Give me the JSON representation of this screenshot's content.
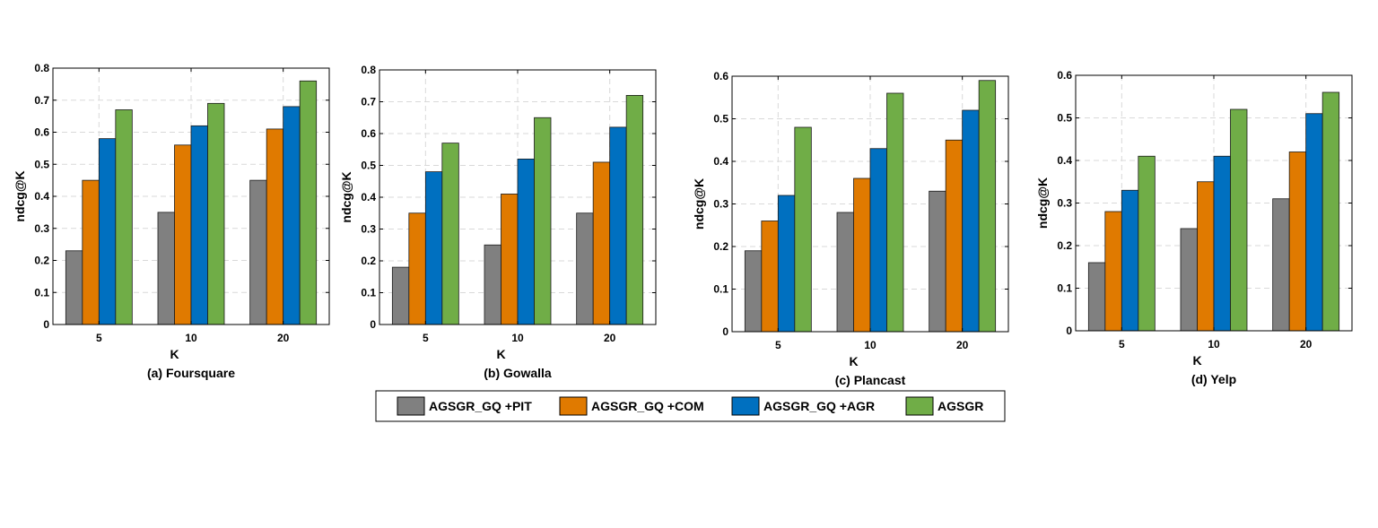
{
  "colors": {
    "series": [
      "#808080",
      "#e07a00",
      "#0070c0",
      "#70ad47"
    ],
    "axis": "#000000",
    "grid": "#d9d9d9"
  },
  "legend": {
    "items": [
      "AGSGR_GQ +PIT",
      "AGSGR_GQ +COM",
      "AGSGR_GQ +AGR",
      "AGSGR"
    ]
  },
  "chart_data": [
    {
      "type": "bar",
      "caption": "(a) Foursquare",
      "xlabel": "K",
      "ylabel": "ndcg@K",
      "categories": [
        "5",
        "10",
        "20"
      ],
      "ylim": [
        0,
        0.8
      ],
      "yticks": [
        "0",
        "0.1",
        "0.2",
        "0.3",
        "0.4",
        "0.5",
        "0.6",
        "0.7",
        "0.8"
      ],
      "grid": true,
      "series": [
        {
          "name": "AGSGR_GQ +PIT",
          "values": [
            0.23,
            0.35,
            0.45
          ]
        },
        {
          "name": "AGSGR_GQ +COM",
          "values": [
            0.45,
            0.56,
            0.61
          ]
        },
        {
          "name": "AGSGR_GQ +AGR",
          "values": [
            0.58,
            0.62,
            0.68
          ]
        },
        {
          "name": "AGSGR",
          "values": [
            0.67,
            0.69,
            0.76
          ]
        }
      ]
    },
    {
      "type": "bar",
      "caption": "(b) Gowalla",
      "xlabel": "K",
      "ylabel": "ndcg@K",
      "categories": [
        "5",
        "10",
        "20"
      ],
      "ylim": [
        0,
        0.8
      ],
      "yticks": [
        "0",
        "0.1",
        "0.2",
        "0.3",
        "0.4",
        "0.5",
        "0.6",
        "0.7",
        "0.8"
      ],
      "grid": true,
      "series": [
        {
          "name": "AGSGR_GQ +PIT",
          "values": [
            0.18,
            0.25,
            0.35
          ]
        },
        {
          "name": "AGSGR_GQ +COM",
          "values": [
            0.35,
            0.41,
            0.51
          ]
        },
        {
          "name": "AGSGR_GQ +AGR",
          "values": [
            0.48,
            0.52,
            0.62
          ]
        },
        {
          "name": "AGSGR",
          "values": [
            0.57,
            0.65,
            0.72
          ]
        }
      ]
    },
    {
      "type": "bar",
      "caption": "(c) Plancast",
      "xlabel": "K",
      "ylabel": "ndcg@K",
      "categories": [
        "5",
        "10",
        "20"
      ],
      "ylim": [
        0,
        0.6
      ],
      "yticks": [
        "0",
        "0.1",
        "0.2",
        "0.3",
        "0.4",
        "0.5",
        "0.6"
      ],
      "grid": true,
      "series": [
        {
          "name": "AGSGR_GQ +PIT",
          "values": [
            0.19,
            0.28,
            0.33
          ]
        },
        {
          "name": "AGSGR_GQ +COM",
          "values": [
            0.26,
            0.36,
            0.45
          ]
        },
        {
          "name": "AGSGR_GQ +AGR",
          "values": [
            0.32,
            0.43,
            0.52
          ]
        },
        {
          "name": "AGSGR",
          "values": [
            0.48,
            0.56,
            0.59
          ]
        }
      ]
    },
    {
      "type": "bar",
      "caption": "(d) Yelp",
      "xlabel": "K",
      "ylabel": "ndcg@K",
      "categories": [
        "5",
        "10",
        "20"
      ],
      "ylim": [
        0,
        0.6
      ],
      "yticks": [
        "0",
        "0.1",
        "0.2",
        "0.3",
        "0.4",
        "0.5",
        "0.6"
      ],
      "grid": true,
      "series": [
        {
          "name": "AGSGR_GQ +PIT",
          "values": [
            0.16,
            0.24,
            0.31
          ]
        },
        {
          "name": "AGSGR_GQ +COM",
          "values": [
            0.28,
            0.35,
            0.42
          ]
        },
        {
          "name": "AGSGR_GQ +AGR",
          "values": [
            0.33,
            0.41,
            0.51
          ]
        },
        {
          "name": "AGSGR",
          "values": [
            0.41,
            0.52,
            0.56
          ]
        }
      ]
    }
  ]
}
